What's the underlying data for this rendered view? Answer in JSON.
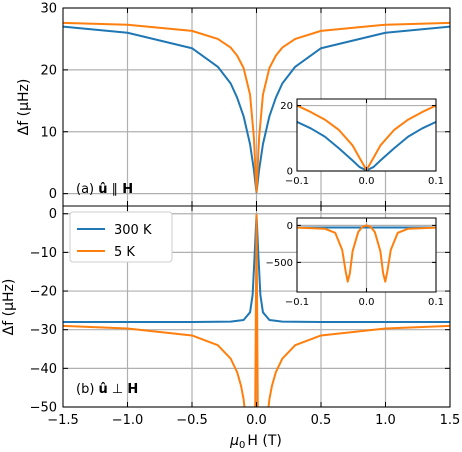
{
  "colors": {
    "s300": "#1f77b4",
    "s5": "#ff7f0e",
    "grid": "#b0b0b0"
  },
  "xaxis": {
    "label_main": "μ",
    "label_sub": "0",
    "label_rest": "H (T)",
    "ticks": [
      -1.5,
      -1.0,
      -0.5,
      0.0,
      0.5,
      1.0,
      1.5
    ],
    "tick_labels": [
      "−1.5",
      "−1.0",
      "−0.5",
      "0.0",
      "0.5",
      "1.0",
      "1.5"
    ]
  },
  "chart_data": [
    {
      "type": "line",
      "panel": "a",
      "label_prefix": "(a) ",
      "label_bold": "û",
      "label_mid": " ∥ ",
      "label_bold2": "H",
      "ylabel": "Δf (μHz)",
      "xlim": [
        -1.5,
        1.5
      ],
      "ylim": [
        -2,
        30
      ],
      "yticks": [
        0,
        10,
        20,
        30
      ],
      "ytick_labels": [
        "0",
        "10",
        "20",
        "30"
      ],
      "grid": true,
      "series": [
        {
          "name": "300 K",
          "color": "#1f77b4",
          "x": [
            -1.5,
            -1.0,
            -0.5,
            -0.3,
            -0.2,
            -0.15,
            -0.1,
            -0.05,
            -0.02,
            0,
            0.02,
            0.05,
            0.1,
            0.15,
            0.2,
            0.3,
            0.5,
            1.0,
            1.5
          ],
          "y": [
            27.0,
            26.0,
            23.5,
            20.5,
            17.8,
            15.5,
            12.5,
            8.0,
            3.8,
            0.2,
            3.8,
            8.0,
            12.5,
            15.5,
            17.8,
            20.5,
            23.5,
            26.0,
            27.0
          ]
        },
        {
          "name": "5 K",
          "color": "#ff7f0e",
          "x": [
            -1.5,
            -1.0,
            -0.5,
            -0.3,
            -0.2,
            -0.15,
            -0.1,
            -0.05,
            -0.02,
            0,
            0.02,
            0.05,
            0.1,
            0.15,
            0.2,
            0.3,
            0.5,
            1.0,
            1.5
          ],
          "y": [
            27.6,
            27.3,
            26.3,
            25.0,
            23.6,
            22.3,
            20.3,
            16.0,
            9.0,
            0.3,
            9.0,
            16.0,
            20.3,
            22.3,
            23.6,
            25.0,
            26.3,
            27.3,
            27.6
          ]
        }
      ],
      "inset": {
        "xlim": [
          -0.1,
          0.1
        ],
        "ylim": [
          0,
          22
        ],
        "xticks": [
          -0.1,
          0.0,
          0.1
        ],
        "xtick_labels": [
          "−0.1",
          "0.0",
          "0.1"
        ],
        "yticks": [
          0,
          20
        ],
        "ytick_labels": [
          "0",
          "20"
        ],
        "series": [
          {
            "name": "300 K",
            "x": [
              -0.1,
              -0.08,
              -0.06,
              -0.04,
              -0.02,
              -0.01,
              0,
              0.01,
              0.02,
              0.04,
              0.06,
              0.08,
              0.1
            ],
            "y": [
              15.0,
              13.0,
              10.5,
              7.0,
              3.2,
              1.2,
              0.2,
              1.2,
              3.2,
              7.0,
              10.5,
              13.0,
              15.0
            ]
          },
          {
            "name": "5 K",
            "x": [
              -0.1,
              -0.08,
              -0.06,
              -0.04,
              -0.02,
              -0.01,
              0,
              0.01,
              0.02,
              0.04,
              0.06,
              0.08,
              0.1
            ],
            "y": [
              20.0,
              18.0,
              15.7,
              12.6,
              7.8,
              4.0,
              0.3,
              4.0,
              7.8,
              12.6,
              15.7,
              18.0,
              20.0
            ]
          }
        ]
      }
    },
    {
      "type": "line",
      "panel": "b",
      "label_prefix": "(b) ",
      "label_bold": "û",
      "label_mid": " ⊥ ",
      "label_bold2": "H",
      "ylabel": "Δf (μHz)",
      "xlim": [
        -1.5,
        1.5
      ],
      "ylim": [
        -50,
        2
      ],
      "yticks": [
        0,
        -10,
        -20,
        -30,
        -40,
        -50
      ],
      "ytick_labels": [
        "0",
        "−10",
        "−20",
        "−30",
        "−40",
        "−50"
      ],
      "grid": true,
      "legend": {
        "placement": "top-left",
        "entries": [
          "300 K",
          "5 K"
        ]
      },
      "series": [
        {
          "name": "300 K",
          "color": "#1f77b4",
          "x": [
            -1.5,
            -0.5,
            -0.2,
            -0.1,
            -0.05,
            -0.03,
            -0.015,
            0,
            0.015,
            0.03,
            0.05,
            0.1,
            0.2,
            0.5,
            1.5
          ],
          "y": [
            -28.0,
            -28.0,
            -27.9,
            -27.5,
            -25.5,
            -21.0,
            -11.0,
            -0.3,
            -11.0,
            -21.0,
            -25.5,
            -27.5,
            -27.9,
            -28.0,
            -28.0
          ]
        },
        {
          "name": "5 K",
          "color": "#ff7f0e",
          "x": [
            -1.5,
            -1.0,
            -0.5,
            -0.3,
            -0.2,
            -0.15,
            -0.12,
            -0.1,
            -0.09,
            -0.01,
            0,
            0.01,
            0.09,
            0.1,
            0.12,
            0.15,
            0.2,
            0.3,
            0.5,
            1.0,
            1.5
          ],
          "y": [
            -29.0,
            -29.7,
            -31.5,
            -34.0,
            -37.5,
            -41.0,
            -44.5,
            -48.0,
            -51.0,
            -51.0,
            -0.3,
            -51.0,
            -51.0,
            -48.0,
            -44.5,
            -41.0,
            -37.5,
            -34.0,
            -31.5,
            -29.7,
            -29.0
          ]
        }
      ],
      "inset": {
        "xlim": [
          -0.1,
          0.1
        ],
        "ylim": [
          -900,
          100
        ],
        "xticks": [
          -0.1,
          0.0,
          0.1
        ],
        "xtick_labels": [
          "−0.1",
          "0.0",
          "0.1"
        ],
        "yticks": [
          0,
          -500
        ],
        "ytick_labels": [
          "0",
          "−500"
        ],
        "series": [
          {
            "name": "300 K",
            "x": [
              -0.1,
              -0.05,
              0,
              0.05,
              0.1
            ],
            "y": [
              -28,
              -28,
              -28,
              -28,
              -28
            ]
          },
          {
            "name": "5 K",
            "x": [
              -0.1,
              -0.06,
              -0.045,
              -0.035,
              -0.03,
              -0.027,
              -0.024,
              -0.02,
              -0.012,
              -0.006,
              0,
              0.006,
              0.012,
              0.02,
              0.024,
              0.027,
              0.03,
              0.035,
              0.045,
              0.06,
              0.1
            ],
            "y": [
              -30,
              -45,
              -100,
              -330,
              -620,
              -760,
              -650,
              -350,
              -90,
              -20,
              0,
              -20,
              -90,
              -350,
              -650,
              -760,
              -620,
              -330,
              -100,
              -45,
              -30
            ]
          }
        ]
      }
    }
  ]
}
